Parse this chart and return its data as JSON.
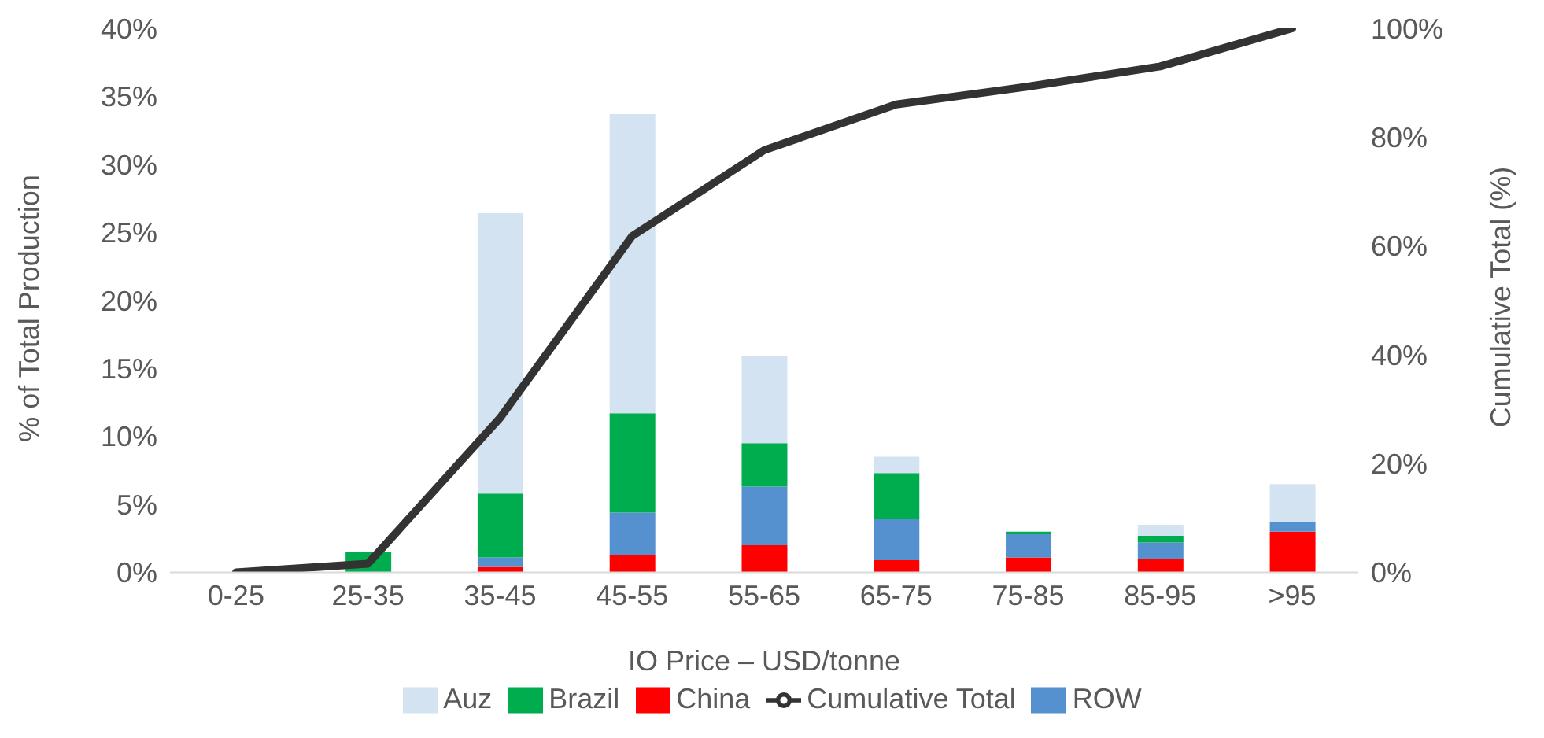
{
  "chart_data": {
    "type": "bar",
    "stacked": true,
    "xlabel": "IO Price – USD/tonne",
    "ylabel": "% of Total Production",
    "y2label": "Cumulative Total (%)",
    "categories": [
      "0-25",
      "25-35",
      "35-45",
      "45-55",
      "55-65",
      "65-75",
      "75-85",
      "85-95",
      ">95"
    ],
    "series": [
      {
        "name": "China",
        "color": "#ff0000",
        "values": [
          0,
          0,
          0.4,
          1.3,
          2.0,
          0.9,
          1.1,
          1.0,
          3.0
        ]
      },
      {
        "name": "ROW",
        "color": "#5591cf",
        "values": [
          0,
          0,
          0.7,
          3.1,
          4.3,
          3.0,
          1.7,
          1.2,
          0.7
        ]
      },
      {
        "name": "Brazil",
        "color": "#00ad4e",
        "values": [
          0,
          1.5,
          4.7,
          7.3,
          3.2,
          3.4,
          0.2,
          0.5,
          0
        ]
      },
      {
        "name": "Auz",
        "color": "#d4e3f2",
        "values": [
          0,
          0,
          20.6,
          22.0,
          6.4,
          1.2,
          0,
          0.8,
          2.8
        ]
      },
      {
        "name": "Cumulative Total",
        "type": "line",
        "axis": "y2",
        "color": "#333333",
        "values": [
          0,
          1.6,
          28.4,
          61.8,
          77.6,
          86.0,
          89.3,
          93.0,
          100
        ]
      }
    ],
    "ylim": [
      0,
      40
    ],
    "yticks": [
      {
        "value": 0,
        "label": "0%"
      },
      {
        "value": 5,
        "label": "5%"
      },
      {
        "value": 10,
        "label": "10%"
      },
      {
        "value": 15,
        "label": "15%"
      },
      {
        "value": 20,
        "label": "20%"
      },
      {
        "value": 25,
        "label": "25%"
      },
      {
        "value": 30,
        "label": "30%"
      },
      {
        "value": 35,
        "label": "35%"
      },
      {
        "value": 40,
        "label": "40%"
      }
    ],
    "y2lim": [
      0,
      100
    ],
    "y2ticks": [
      {
        "value": 0,
        "label": "0%"
      },
      {
        "value": 20,
        "label": "20%"
      },
      {
        "value": 40,
        "label": "40%"
      },
      {
        "value": 60,
        "label": "60%"
      },
      {
        "value": 80,
        "label": "80%"
      },
      {
        "value": 100,
        "label": "100%"
      }
    ],
    "legend": "bottom",
    "marker": "none"
  }
}
